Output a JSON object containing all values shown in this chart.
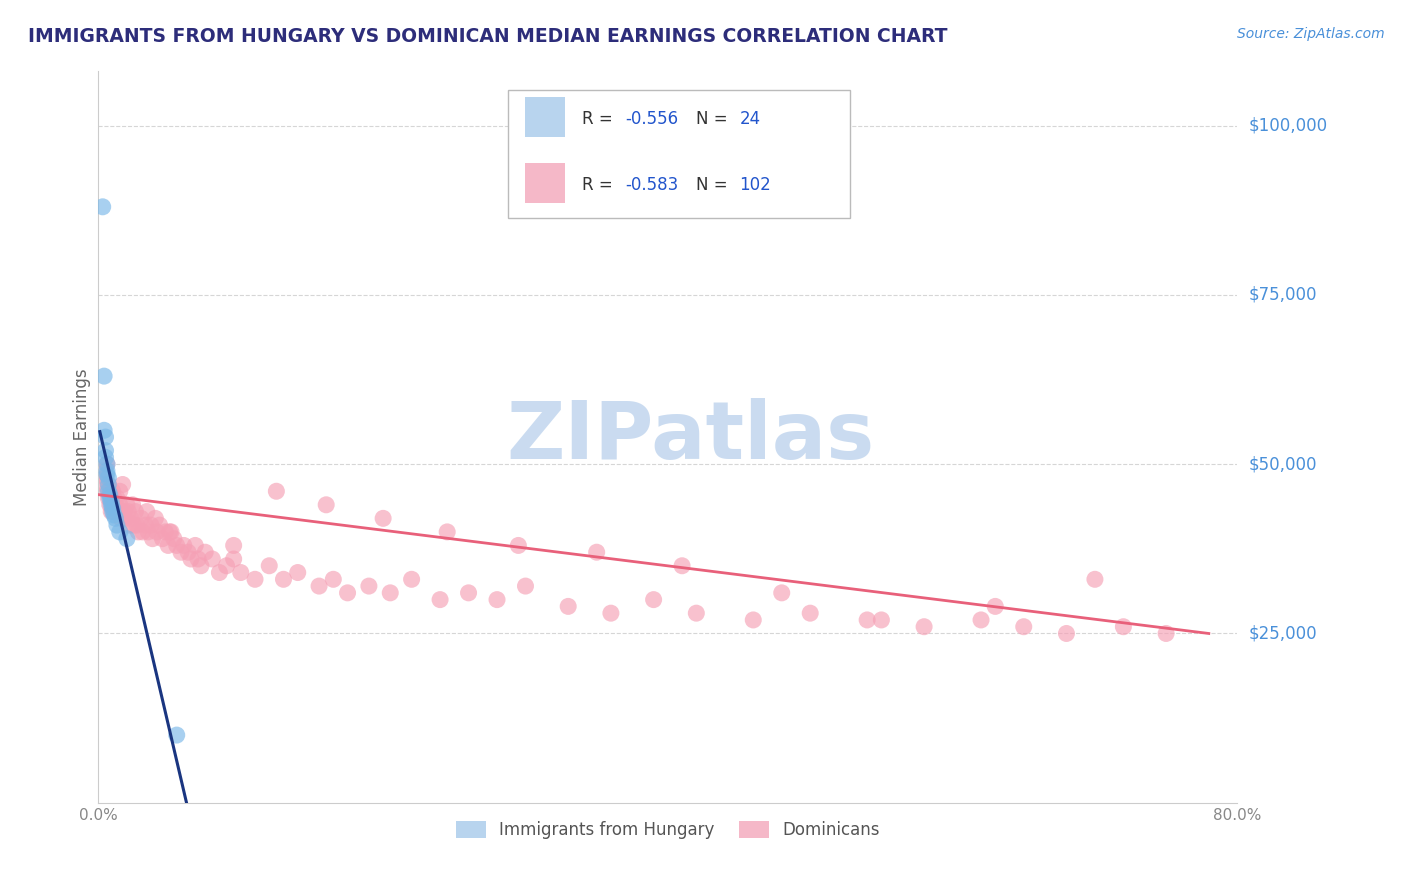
{
  "title": "IMMIGRANTS FROM HUNGARY VS DOMINICAN MEDIAN EARNINGS CORRELATION CHART",
  "source": "Source: ZipAtlas.com",
  "ylabel": "Median Earnings",
  "xlim": [
    0.0,
    0.8
  ],
  "ylim": [
    0,
    108000
  ],
  "yticks": [
    25000,
    50000,
    75000,
    100000
  ],
  "ytick_labels": [
    "$25,000",
    "$50,000",
    "$75,000",
    "$100,000"
  ],
  "title_color": "#2d2d7a",
  "source_color": "#4a90d9",
  "ylabel_color": "#666666",
  "yticklabel_color": "#4a90d9",
  "watermark_text": "ZIPatlas",
  "watermark_color": "#c5d8ef",
  "legend_color1": "#b8d4ee",
  "legend_color2": "#f5b8c8",
  "background_color": "#ffffff",
  "grid_color": "#cccccc",
  "hungary_color": "#7ab8e8",
  "dominican_color": "#f5a0b5",
  "hungary_line_color": "#1a3580",
  "dominican_line_color": "#e8607a",
  "hungary_x": [
    0.003,
    0.004,
    0.004,
    0.005,
    0.005,
    0.005,
    0.006,
    0.006,
    0.006,
    0.007,
    0.007,
    0.007,
    0.008,
    0.008,
    0.009,
    0.009,
    0.01,
    0.01,
    0.011,
    0.012,
    0.013,
    0.015,
    0.02,
    0.055
  ],
  "hungary_y": [
    88000,
    63000,
    55000,
    54000,
    52000,
    51000,
    50000,
    49000,
    48500,
    48000,
    47000,
    46000,
    45500,
    45000,
    44500,
    44000,
    43500,
    43000,
    42500,
    42000,
    41000,
    40000,
    39000,
    10000
  ],
  "dom_x": [
    0.003,
    0.004,
    0.005,
    0.006,
    0.006,
    0.007,
    0.007,
    0.008,
    0.008,
    0.009,
    0.009,
    0.01,
    0.01,
    0.011,
    0.011,
    0.012,
    0.013,
    0.014,
    0.015,
    0.015,
    0.016,
    0.017,
    0.018,
    0.019,
    0.02,
    0.021,
    0.022,
    0.023,
    0.024,
    0.025,
    0.026,
    0.027,
    0.028,
    0.03,
    0.031,
    0.033,
    0.034,
    0.035,
    0.037,
    0.038,
    0.04,
    0.041,
    0.043,
    0.045,
    0.047,
    0.049,
    0.051,
    0.053,
    0.055,
    0.058,
    0.06,
    0.063,
    0.065,
    0.068,
    0.072,
    0.075,
    0.08,
    0.085,
    0.09,
    0.095,
    0.1,
    0.11,
    0.12,
    0.13,
    0.14,
    0.155,
    0.165,
    0.175,
    0.19,
    0.205,
    0.22,
    0.24,
    0.26,
    0.28,
    0.3,
    0.33,
    0.36,
    0.39,
    0.42,
    0.46,
    0.5,
    0.54,
    0.58,
    0.62,
    0.65,
    0.68,
    0.72,
    0.75,
    0.7,
    0.63,
    0.55,
    0.48,
    0.41,
    0.35,
    0.295,
    0.245,
    0.2,
    0.16,
    0.125,
    0.095,
    0.07,
    0.05
  ],
  "dom_y": [
    49000,
    47000,
    48000,
    46000,
    50000,
    45000,
    47000,
    46000,
    44000,
    45000,
    43000,
    46000,
    44000,
    45000,
    43000,
    44000,
    45000,
    43000,
    44000,
    46000,
    42000,
    47000,
    43000,
    42000,
    44000,
    43000,
    41000,
    42000,
    44000,
    41000,
    43000,
    41000,
    40000,
    42000,
    40000,
    41000,
    43000,
    40000,
    41000,
    39000,
    42000,
    40000,
    41000,
    39000,
    40000,
    38000,
    40000,
    39000,
    38000,
    37000,
    38000,
    37000,
    36000,
    38000,
    35000,
    37000,
    36000,
    34000,
    35000,
    36000,
    34000,
    33000,
    35000,
    33000,
    34000,
    32000,
    33000,
    31000,
    32000,
    31000,
    33000,
    30000,
    31000,
    30000,
    32000,
    29000,
    28000,
    30000,
    28000,
    27000,
    28000,
    27000,
    26000,
    27000,
    26000,
    25000,
    26000,
    25000,
    33000,
    29000,
    27000,
    31000,
    35000,
    37000,
    38000,
    40000,
    42000,
    44000,
    46000,
    38000,
    36000,
    40000
  ]
}
